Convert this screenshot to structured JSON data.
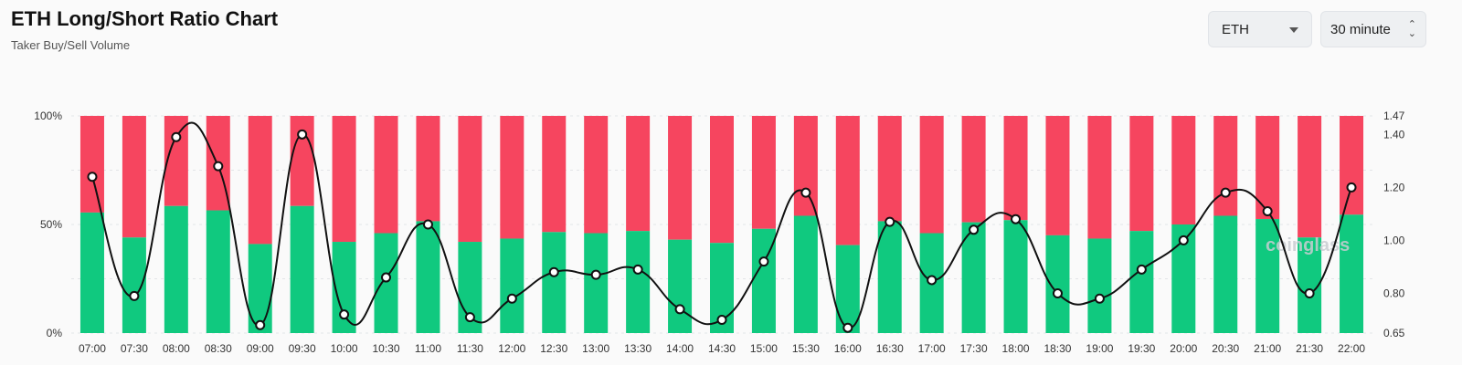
{
  "header": {
    "title": "ETH Long/Short Ratio Chart",
    "subtitle": "Taker Buy/Sell Volume"
  },
  "controls": {
    "symbol": {
      "value": "ETH"
    },
    "interval": {
      "value": "30 minute"
    }
  },
  "watermark": "coinglass",
  "colors": {
    "long": "#10c97f",
    "short": "#f6455f",
    "ratio_line": "#111111"
  },
  "chart_data": {
    "type": "bar",
    "stacked": true,
    "categories": [
      "07:00",
      "07:30",
      "08:00",
      "08:30",
      "09:00",
      "09:30",
      "10:00",
      "10:30",
      "11:00",
      "11:30",
      "12:00",
      "12:30",
      "13:00",
      "13:30",
      "14:00",
      "14:30",
      "15:00",
      "15:30",
      "16:00",
      "16:30",
      "17:00",
      "17:30",
      "18:00",
      "18:30",
      "19:00",
      "19:30",
      "20:00",
      "20:30",
      "21:00",
      "21:30",
      "22:00"
    ],
    "series": [
      {
        "values": [
          55.5,
          44,
          58.5,
          56.5,
          41,
          58.5,
          42,
          46,
          51.5,
          42,
          43.5,
          46.5,
          46,
          47,
          43,
          41.5,
          48,
          54,
          40.5,
          51.5,
          46,
          51,
          52,
          45,
          43.5,
          47,
          50,
          54,
          52.5,
          44,
          54.5
        ]
      },
      {
        "values": [
          44.5,
          56,
          41.5,
          43.5,
          59,
          41.5,
          58,
          54,
          48.5,
          58,
          56.5,
          53.5,
          54,
          53,
          57,
          58.5,
          52,
          46,
          59.5,
          48.5,
          54,
          49,
          48,
          55,
          56.5,
          53,
          50,
          46,
          47.5,
          56,
          45.5
        ]
      },
      {
        "axis": "right",
        "type": "line",
        "values": [
          1.24,
          0.79,
          1.39,
          1.28,
          0.68,
          1.4,
          0.72,
          0.86,
          1.06,
          0.71,
          0.78,
          0.88,
          0.87,
          0.89,
          0.74,
          0.7,
          0.92,
          1.18,
          0.67,
          1.07,
          0.85,
          1.04,
          1.08,
          0.8,
          0.78,
          0.89,
          1.0,
          1.18,
          1.11,
          0.8,
          1.2
        ]
      }
    ],
    "y_left": {
      "ticks": [
        "0%",
        "50%",
        "100%"
      ],
      "range": [
        0,
        100
      ]
    },
    "y_right": {
      "ticks": [
        "0.65",
        "0.80",
        "1.00",
        "1.20",
        "1.40",
        "1.47"
      ],
      "range": [
        0.65,
        1.47
      ]
    },
    "grid": true
  }
}
